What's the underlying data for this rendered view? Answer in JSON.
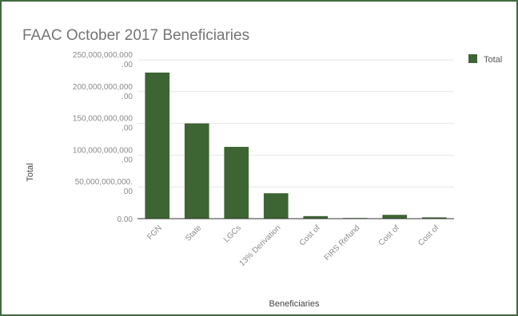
{
  "chart_data": {
    "type": "bar",
    "title": "FAAC October 2017 Beneficiaries",
    "xlabel": "Beneficiaries",
    "ylabel": "Total",
    "categories": [
      "FGN",
      "State",
      "LGCs",
      "13% Derivation",
      "Cost of",
      "FIRS Refund",
      "Cost of",
      "Cost of"
    ],
    "series": [
      {
        "name": "Total",
        "values": [
          230000000000,
          150000000000,
          113000000000,
          40000000000,
          4000000000,
          1000000000,
          6000000000,
          2000000000
        ]
      }
    ],
    "ylim": [
      0,
      250000000000
    ],
    "yticks": [
      {
        "value": 0,
        "line1": "0.00",
        "line2": ""
      },
      {
        "value": 50000000000,
        "line1": "50,000,000,000.",
        "line2": "00"
      },
      {
        "value": 100000000000,
        "line1": "100,000,000,000",
        "line2": ".00"
      },
      {
        "value": 150000000000,
        "line1": "150,000,000,000",
        "line2": ".00"
      },
      {
        "value": 200000000000,
        "line1": "200,000,000,000",
        "line2": ".00"
      },
      {
        "value": 250000000000,
        "line1": "250,000,000,000",
        "line2": ".00"
      }
    ],
    "grid": true,
    "legend_position": "top-right",
    "colors": {
      "bar": "#3d6533",
      "grid": "#e6e6e6",
      "axis": "#333333"
    }
  }
}
